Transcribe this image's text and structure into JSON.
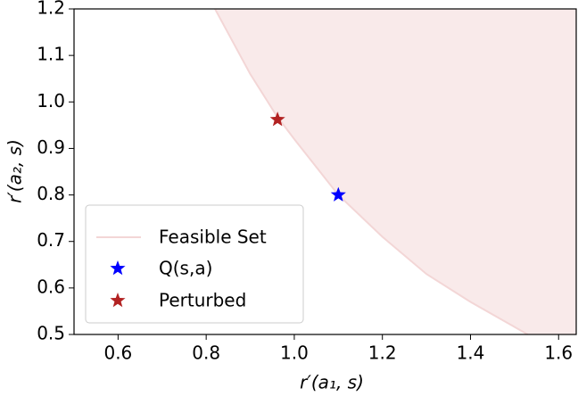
{
  "chart_data": {
    "type": "scatter",
    "xlabel": "r′(a₁, s)",
    "ylabel": "r′(a₂, s)",
    "xlim": [
      0.5,
      1.64
    ],
    "ylim": [
      0.5,
      1.2
    ],
    "xticks": [
      0.6,
      0.8,
      {
        "value": 1,
        "label": "1.0"
      },
      1.2,
      1.4,
      1.6
    ],
    "yticks": [
      0.5,
      0.6,
      0.7,
      0.8,
      0.9,
      {
        "value": 1,
        "label": "1.0"
      },
      1.1,
      1.2
    ],
    "legend": "lower left",
    "feasible_set": {
      "name": "Feasible Set",
      "color": "#f3d6d6",
      "x": [
        0.82,
        0.9,
        0.96,
        1.0,
        1.1,
        1.2,
        1.3,
        1.4,
        1.53
      ],
      "y": [
        1.2,
        1.06,
        0.97,
        0.92,
        0.8,
        0.71,
        0.63,
        0.57,
        0.5
      ]
    },
    "series": [
      {
        "name": "Q(s,a)",
        "color": "#0000ff",
        "x": [
          1.1
        ],
        "values": [
          0.8
        ]
      },
      {
        "name": "Perturbed",
        "color": "#b22222",
        "x": [
          0.962
        ],
        "values": [
          0.962
        ]
      }
    ]
  }
}
